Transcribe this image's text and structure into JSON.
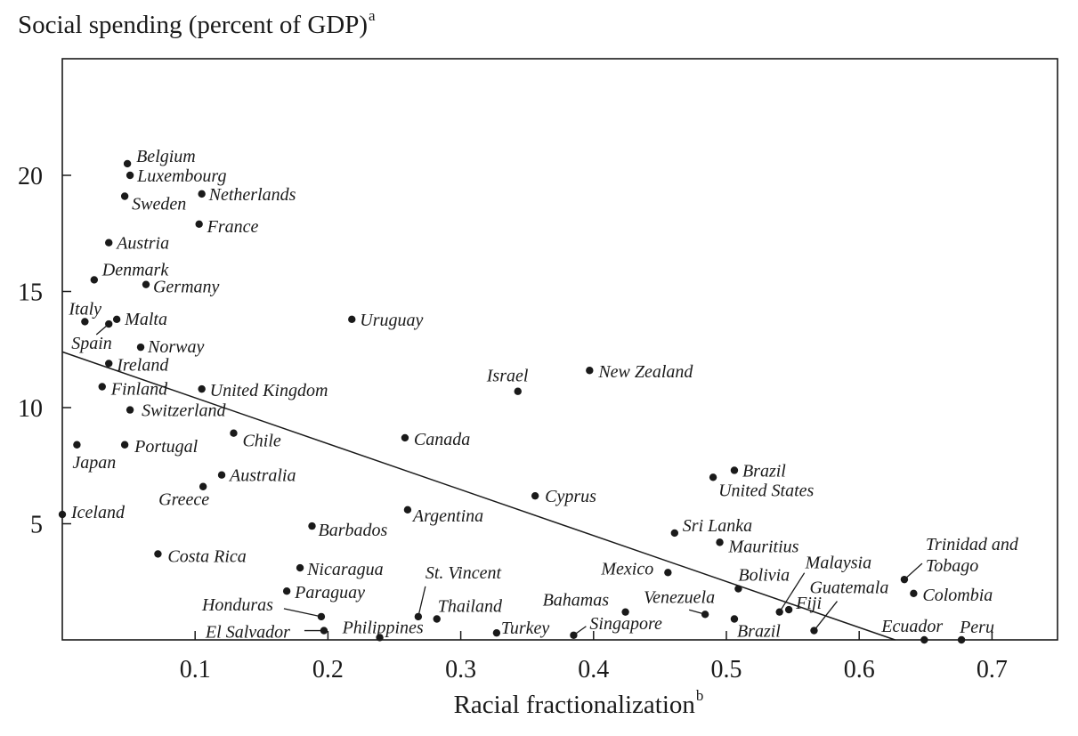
{
  "chart_data": {
    "type": "scatter",
    "title": "",
    "ylabel": "Social spending (percent of GDP)",
    "ylabel_sup": "a",
    "xlabel": "Racial fractionalization",
    "xlabel_sup": "b",
    "xlim": [
      0,
      0.75
    ],
    "ylim": [
      0,
      25
    ],
    "x_ticks": [
      0.1,
      0.2,
      0.3,
      0.4,
      0.5,
      0.6,
      0.7
    ],
    "y_ticks": [
      5,
      10,
      15,
      20
    ],
    "x_tick_labels": [
      "0.1",
      "0.2",
      "0.3",
      "0.4",
      "0.5",
      "0.6",
      "0.7"
    ],
    "y_tick_labels": [
      "5",
      "10",
      "15",
      "20"
    ],
    "fit_line": {
      "x": [
        0,
        0.627
      ],
      "y": [
        12.4,
        0
      ]
    },
    "grid": false,
    "legend": "none",
    "points": [
      {
        "label": "Belgium",
        "x": 0.049,
        "y": 20.5
      },
      {
        "label": "Luxembourg",
        "x": 0.051,
        "y": 20.0
      },
      {
        "label": "Sweden",
        "x": 0.047,
        "y": 19.1
      },
      {
        "label": "Netherlands",
        "x": 0.105,
        "y": 19.2
      },
      {
        "label": "France",
        "x": 0.103,
        "y": 17.9
      },
      {
        "label": "Austria",
        "x": 0.035,
        "y": 17.1
      },
      {
        "label": "Denmark",
        "x": 0.024,
        "y": 15.5
      },
      {
        "label": "Germany",
        "x": 0.063,
        "y": 15.3
      },
      {
        "label": "Italy",
        "x": 0.017,
        "y": 13.7
      },
      {
        "label": "Spain",
        "x": 0.035,
        "y": 13.6
      },
      {
        "label": "Malta",
        "x": 0.041,
        "y": 13.8
      },
      {
        "label": "Uruguay",
        "x": 0.218,
        "y": 13.8
      },
      {
        "label": "Norway",
        "x": 0.059,
        "y": 12.6
      },
      {
        "label": "Ireland",
        "x": 0.035,
        "y": 11.9
      },
      {
        "label": "New Zealand",
        "x": 0.397,
        "y": 11.6
      },
      {
        "label": "Israel",
        "x": 0.343,
        "y": 10.7
      },
      {
        "label": "Finland",
        "x": 0.03,
        "y": 10.9
      },
      {
        "label": "United Kingdom",
        "x": 0.105,
        "y": 10.8
      },
      {
        "label": "Switzerland",
        "x": 0.051,
        "y": 9.9
      },
      {
        "label": "Chile",
        "x": 0.129,
        "y": 8.9
      },
      {
        "label": "Canada",
        "x": 0.258,
        "y": 8.7
      },
      {
        "label": "Japan",
        "x": 0.011,
        "y": 8.4
      },
      {
        "label": "Portugal",
        "x": 0.047,
        "y": 8.4
      },
      {
        "label": "Brazil",
        "x": 0.506,
        "y": 7.3
      },
      {
        "label": "United States",
        "x": 0.49,
        "y": 7.0
      },
      {
        "label": "Australia",
        "x": 0.12,
        "y": 7.1
      },
      {
        "label": "Greece",
        "x": 0.106,
        "y": 6.6
      },
      {
        "label": "Cyprus",
        "x": 0.356,
        "y": 6.2
      },
      {
        "label": "Argentina",
        "x": 0.26,
        "y": 5.6
      },
      {
        "label": "Iceland",
        "x": 0.0,
        "y": 5.4
      },
      {
        "label": "Barbados",
        "x": 0.188,
        "y": 4.9
      },
      {
        "label": "Sri Lanka",
        "x": 0.461,
        "y": 4.6
      },
      {
        "label": "Mauritius",
        "x": 0.495,
        "y": 4.2
      },
      {
        "label": "Costa Rica",
        "x": 0.072,
        "y": 3.7
      },
      {
        "label": "Nicaragua",
        "x": 0.179,
        "y": 3.1
      },
      {
        "label": "Mexico",
        "x": 0.456,
        "y": 2.9
      },
      {
        "label": "Trinidad and Tobago",
        "x": 0.634,
        "y": 2.6
      },
      {
        "label": "Paraguay",
        "x": 0.169,
        "y": 2.1
      },
      {
        "label": "Bolivia",
        "x": 0.509,
        "y": 2.2
      },
      {
        "label": "Colombia",
        "x": 0.641,
        "y": 2.0
      },
      {
        "label": "St. Vincent",
        "x": 0.268,
        "y": 1.0
      },
      {
        "label": "Thailand",
        "x": 0.282,
        "y": 0.9
      },
      {
        "label": "Honduras",
        "x": 0.195,
        "y": 1.0
      },
      {
        "label": "Bahamas",
        "x": 0.424,
        "y": 1.2
      },
      {
        "label": "Venezuela",
        "x": 0.484,
        "y": 1.1
      },
      {
        "label": "Malaysia",
        "x": 0.54,
        "y": 1.2
      },
      {
        "label": "Fiji",
        "x": 0.547,
        "y": 1.3
      },
      {
        "label": "Brazil",
        "x": 0.506,
        "y": 0.9
      },
      {
        "label": "Guatemala",
        "x": 0.566,
        "y": 0.4
      },
      {
        "label": "El Salvador",
        "x": 0.197,
        "y": 0.4
      },
      {
        "label": "Philippines",
        "x": 0.239,
        "y": 0.1
      },
      {
        "label": "Turkey",
        "x": 0.327,
        "y": 0.3
      },
      {
        "label": "Singapore",
        "x": 0.385,
        "y": 0.2
      },
      {
        "label": "Ecuador",
        "x": 0.649,
        "y": 0.0
      },
      {
        "label": "Peru",
        "x": 0.677,
        "y": 0.0
      }
    ]
  }
}
